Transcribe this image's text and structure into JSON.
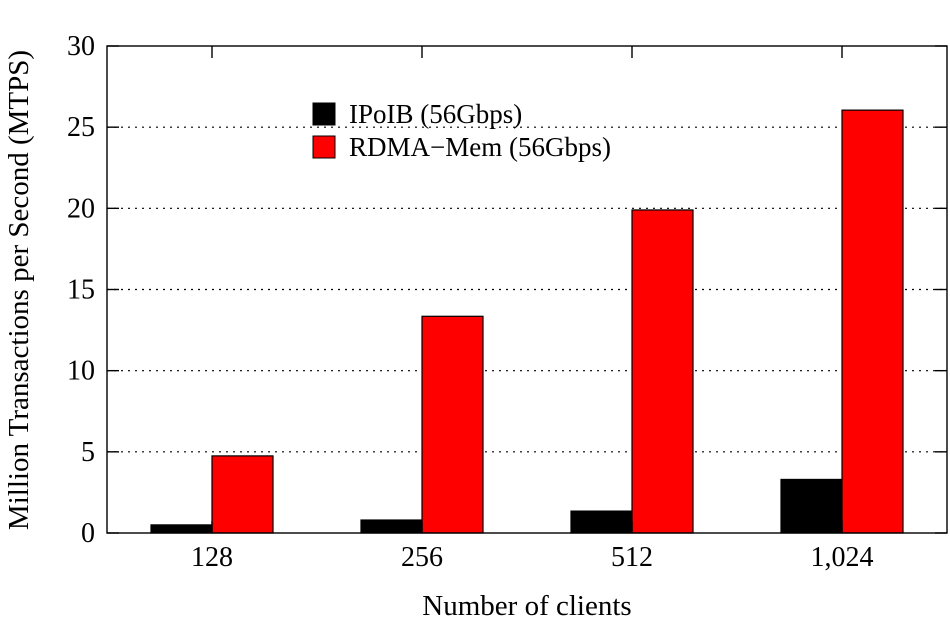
{
  "chart_data": {
    "type": "bar",
    "xlabel": "Number of clients",
    "ylabel": "Million Transactions per Second (MTPS)",
    "categories": [
      "128",
      "256",
      "512",
      "1,024"
    ],
    "series": [
      {
        "name": "IPoIB (56Gbps)",
        "color": "#000000",
        "values": [
          0.5,
          0.8,
          1.35,
          3.3
        ]
      },
      {
        "name": "RDMA−Mem (56Gbps)",
        "color": "#ff0000",
        "values": [
          4.75,
          13.35,
          19.9,
          26.05
        ]
      }
    ],
    "ylim": [
      0,
      30
    ],
    "yticks": [
      0,
      5,
      10,
      15,
      20,
      25,
      30
    ],
    "grid": "horizontal dotted",
    "legend_position": "top-center"
  }
}
